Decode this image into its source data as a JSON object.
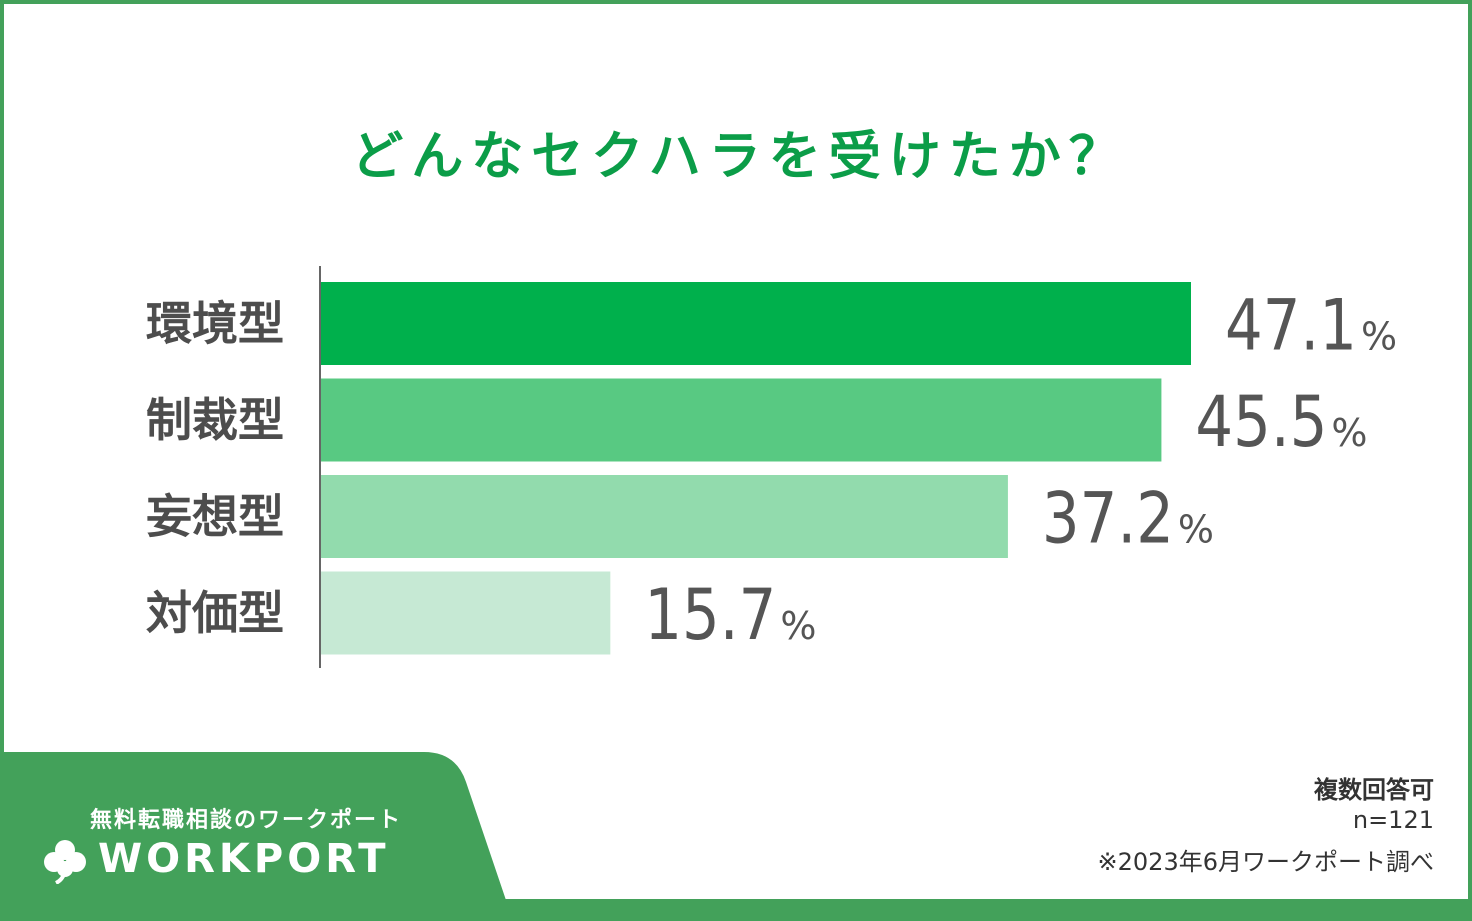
{
  "title": "どんなセクハラを受けたか？",
  "chart_data": {
    "type": "bar",
    "orientation": "horizontal",
    "categories": [
      "環境型",
      "制裁型",
      "妄想型",
      "対価型"
    ],
    "values": [
      47.1,
      45.5,
      37.2,
      15.7
    ],
    "value_labels": [
      "47.1",
      "45.5",
      "37.2",
      "15.7"
    ],
    "unit": "%",
    "xlim": [
      0,
      55
    ],
    "bar_colors": [
      "#00b04c",
      "#58c982",
      "#92dbad",
      "#c6e9d4"
    ],
    "grid": false
  },
  "footer": {
    "tagline": "無料転職相談のワークポート",
    "brand": "WORKPORT",
    "brand_color": "#43a15a",
    "logo_icon": "clover-icon"
  },
  "notes": {
    "multiple": "複数回答可",
    "sample": "n=121",
    "source": "※2023年6月ワークポート調べ"
  }
}
